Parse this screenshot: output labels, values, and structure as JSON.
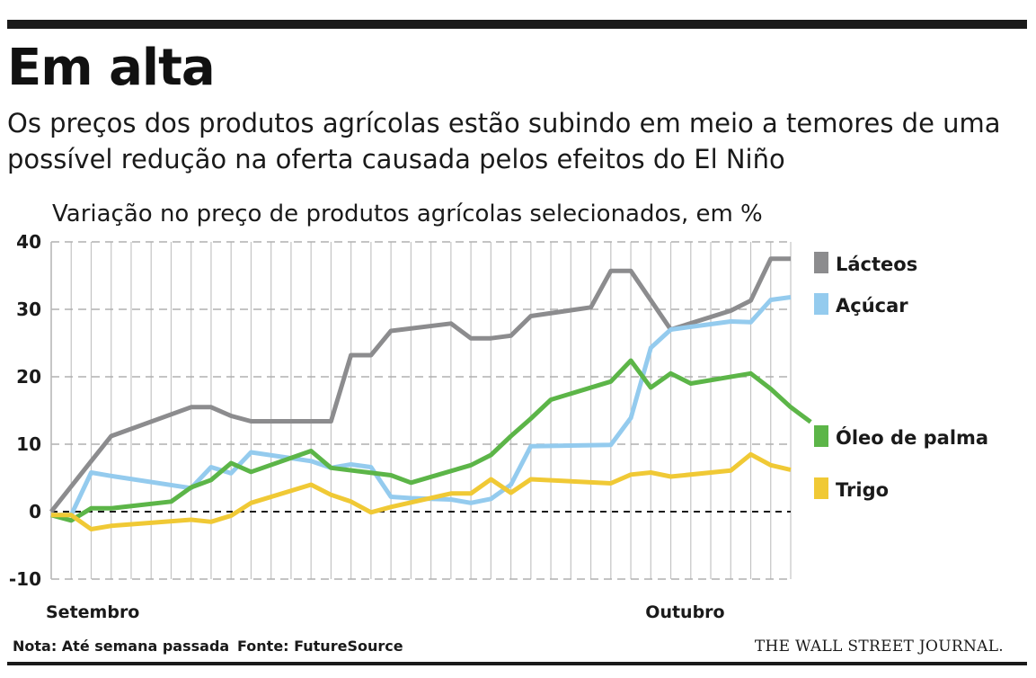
{
  "header": {
    "headline": "Em alta",
    "subtitle": "Os preços dos produtos agrícolas estão subindo em meio a temores de uma possível redução na oferta causada pelos efeitos do El Niño"
  },
  "footer": {
    "note": "Nota: Até semana passada",
    "source": "Fonte: FutureSource",
    "brand": "THE WALL STREET JOURNAL."
  },
  "chart_data": {
    "type": "line",
    "title": "Variação no preço de produtos agrícolas selecionados, em %",
    "xlabel": "",
    "ylabel": "",
    "ylim": [
      -10,
      40
    ],
    "yticks": [
      40,
      30,
      20,
      10,
      0,
      -10
    ],
    "grid": true,
    "legend_placement": "right",
    "x_period_labels": [
      {
        "label": "Setembro",
        "x": 0
      },
      {
        "label": "Outubro",
        "x": 30
      }
    ],
    "x_count": 38,
    "series": [
      {
        "name": "Lácteos",
        "color": "#8c8c8e",
        "points": [
          [
            0,
            0
          ],
          [
            2,
            7.5
          ],
          [
            3,
            11.2
          ],
          [
            7,
            15.5
          ],
          [
            8,
            15.5
          ],
          [
            9,
            14.2
          ],
          [
            10,
            13.4
          ],
          [
            14,
            13.4
          ],
          [
            15,
            23.2
          ],
          [
            16,
            23.2
          ],
          [
            17,
            26.8
          ],
          [
            20,
            27.9
          ],
          [
            21,
            25.7
          ],
          [
            22,
            25.7
          ],
          [
            23,
            26.1
          ],
          [
            24,
            29
          ],
          [
            27,
            30.3
          ],
          [
            28,
            35.7
          ],
          [
            29,
            35.7
          ],
          [
            31,
            27
          ],
          [
            34,
            29.8
          ],
          [
            35,
            31.3
          ],
          [
            36,
            37.5
          ],
          [
            37,
            37.5
          ]
        ]
      },
      {
        "name": "Açúcar",
        "color": "#94cbee",
        "points": [
          [
            0,
            -0.5
          ],
          [
            1,
            -0.5
          ],
          [
            2,
            5.8
          ],
          [
            3,
            5.3
          ],
          [
            7,
            3.5
          ],
          [
            8,
            6.6
          ],
          [
            9,
            5.7
          ],
          [
            10,
            8.8
          ],
          [
            13,
            7.5
          ],
          [
            14,
            6.5
          ],
          [
            15,
            7
          ],
          [
            16,
            6.6
          ],
          [
            17,
            2.2
          ],
          [
            18,
            2
          ],
          [
            19,
            1.9
          ],
          [
            20,
            1.8
          ],
          [
            21,
            1.3
          ],
          [
            22,
            1.9
          ],
          [
            23,
            4
          ],
          [
            24,
            9.7
          ],
          [
            28,
            9.9
          ],
          [
            29,
            13.9
          ],
          [
            30,
            24.3
          ],
          [
            31,
            27
          ],
          [
            34,
            28.2
          ],
          [
            35,
            28.1
          ],
          [
            36,
            31.4
          ],
          [
            37,
            31.8
          ]
        ]
      },
      {
        "name": "Óleo de palma",
        "color": "#5cb548",
        "points": [
          [
            0,
            -0.5
          ],
          [
            1,
            -1.3
          ],
          [
            2,
            0.5
          ],
          [
            3,
            0.5
          ],
          [
            6,
            1.5
          ],
          [
            7,
            3.6
          ],
          [
            8,
            4.7
          ],
          [
            9,
            7.2
          ],
          [
            10,
            5.9
          ],
          [
            13,
            9
          ],
          [
            14,
            6.5
          ],
          [
            17,
            5.4
          ],
          [
            18,
            4.3
          ],
          [
            21,
            6.9
          ],
          [
            22,
            8.4
          ],
          [
            23,
            11.2
          ],
          [
            24,
            13.8
          ],
          [
            25,
            16.6
          ],
          [
            28,
            19.3
          ],
          [
            29,
            22.4
          ],
          [
            30,
            18.4
          ],
          [
            31,
            20.5
          ],
          [
            32,
            19
          ],
          [
            35,
            20.5
          ],
          [
            36,
            18.2
          ],
          [
            37,
            15.5
          ],
          [
            38,
            13.3
          ]
        ]
      },
      {
        "name": "Trigo",
        "color": "#f0c935",
        "points": [
          [
            0,
            -0.5
          ],
          [
            1,
            -0.5
          ],
          [
            2,
            -2.6
          ],
          [
            3,
            -2.1
          ],
          [
            7,
            -1.2
          ],
          [
            8,
            -1.5
          ],
          [
            9,
            -0.6
          ],
          [
            10,
            1.3
          ],
          [
            13,
            4
          ],
          [
            14,
            2.5
          ],
          [
            15,
            1.5
          ],
          [
            16,
            -0.1
          ],
          [
            17,
            0.7
          ],
          [
            20,
            2.7
          ],
          [
            21,
            2.7
          ],
          [
            22,
            4.8
          ],
          [
            23,
            2.8
          ],
          [
            24,
            4.8
          ],
          [
            28,
            4.2
          ],
          [
            29,
            5.5
          ],
          [
            30,
            5.8
          ],
          [
            31,
            5.2
          ],
          [
            34,
            6.1
          ],
          [
            35,
            8.5
          ],
          [
            36,
            6.9
          ],
          [
            37,
            6.2
          ]
        ]
      }
    ]
  }
}
